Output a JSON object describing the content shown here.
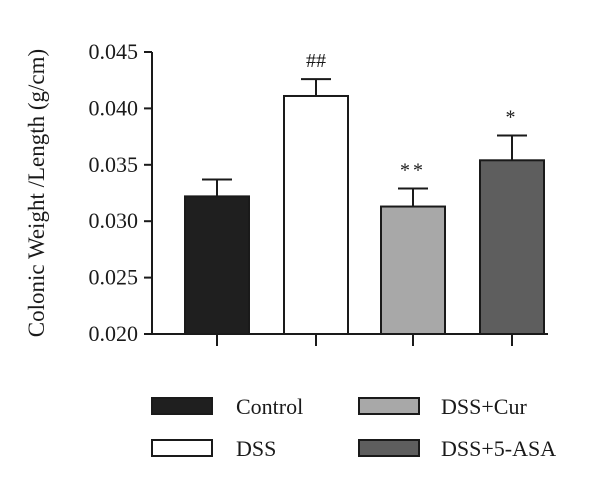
{
  "chart_data": {
    "type": "bar",
    "title": "",
    "xlabel": "",
    "ylabel": "Colonic Weight /Length (g/cm)",
    "ylim": [
      0.02,
      0.045
    ],
    "yticks": [
      "0.020",
      "0.025",
      "0.030",
      "0.035",
      "0.040",
      "0.045"
    ],
    "yticks_values": [
      0.02,
      0.025,
      0.03,
      0.035,
      0.04,
      0.045
    ],
    "grid": false,
    "legend_position": "bottom",
    "categories": [
      "Control",
      "DSS",
      "DSS+Cur",
      "DSS+5-ASA"
    ],
    "values": [
      0.0322,
      0.0411,
      0.0313,
      0.0354
    ],
    "errors": [
      0.0015,
      0.0015,
      0.0016,
      0.0022
    ],
    "annotations": [
      "",
      "##",
      "**",
      "*"
    ],
    "colors": [
      "#1f1f1f",
      "#ffffff",
      "#a8a8a8",
      "#5e5e5e"
    ]
  }
}
